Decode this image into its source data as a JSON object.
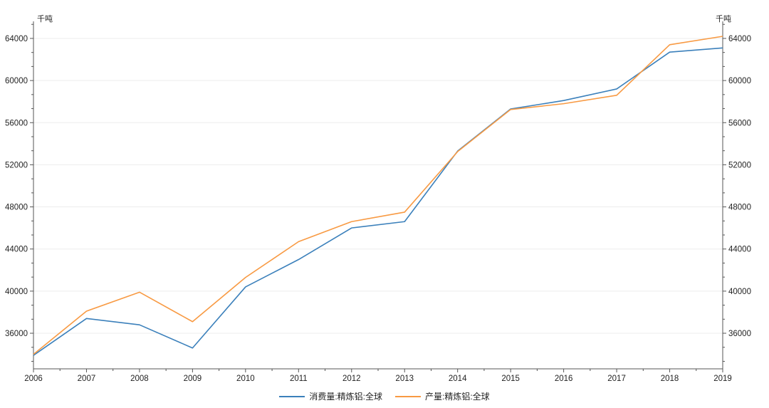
{
  "colors": {
    "background": "#ffffff",
    "axis": "#555555",
    "grid": "#ededed",
    "tick_label": "#222222",
    "consumption_line": "#3b80bb",
    "production_line": "#f89a43"
  },
  "chart_data": {
    "type": "line",
    "title": "",
    "unit_left": "千吨",
    "unit_right": "千吨",
    "x": [
      2006,
      2007,
      2008,
      2009,
      2010,
      2011,
      2012,
      2013,
      2014,
      2015,
      2016,
      2017,
      2018,
      2019
    ],
    "series": [
      {
        "name": "消费量:精炼铝:全球",
        "color": "#3b80bb",
        "values": [
          33900,
          37400,
          36800,
          34600,
          40400,
          43000,
          46000,
          46600,
          53300,
          57300,
          58100,
          59200,
          62700,
          63100
        ]
      },
      {
        "name": "产量:精炼铝:全球",
        "color": "#f89a43",
        "values": [
          34000,
          38100,
          39900,
          37100,
          41300,
          44700,
          46600,
          47500,
          53250,
          57250,
          57800,
          58600,
          63400,
          64200
        ]
      }
    ],
    "y_ticks": [
      36000,
      40000,
      44000,
      48000,
      52000,
      56000,
      60000,
      64000
    ],
    "ylim": [
      32620,
      65620
    ],
    "xlabel": "",
    "ylabel": "千吨",
    "grid": true,
    "legend_position": "bottom"
  }
}
